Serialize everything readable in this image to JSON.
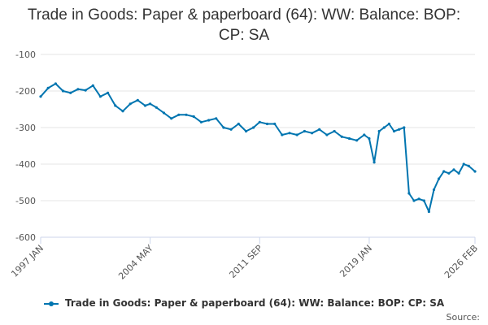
{
  "chart_data": {
    "type": "line",
    "title": "Trade in Goods: Paper & paperboard (64): WW: Balance: BOP: CP: SA",
    "xlabel": "",
    "ylabel": "",
    "x_tick_labels": [
      "1997 JAN",
      "2004 MAY",
      "2011 SEP",
      "2019 JAN",
      "2026 FEB"
    ],
    "y_ticks": [
      -100,
      -200,
      -300,
      -400,
      -500,
      -600
    ],
    "ylim": [
      -600,
      -100
    ],
    "xlim": [
      "1997-01",
      "2026-02"
    ],
    "grid": true,
    "legend_position": "bottom",
    "series": [
      {
        "name": "Trade in Goods: Paper & paperboard (64): WW: Balance: BOP: CP: SA",
        "color": "#0075b0",
        "x": [
          "1997-01",
          "1997-07",
          "1998-01",
          "1998-07",
          "1999-01",
          "1999-07",
          "2000-01",
          "2000-07",
          "2001-01",
          "2001-07",
          "2002-01",
          "2002-07",
          "2003-01",
          "2003-07",
          "2004-01",
          "2004-05",
          "2004-10",
          "2005-04",
          "2005-10",
          "2006-04",
          "2006-10",
          "2007-04",
          "2007-10",
          "2008-04",
          "2008-10",
          "2009-04",
          "2009-10",
          "2010-04",
          "2010-10",
          "2011-04",
          "2011-09",
          "2012-03",
          "2012-09",
          "2013-03",
          "2013-09",
          "2014-03",
          "2014-09",
          "2015-03",
          "2015-09",
          "2016-03",
          "2016-09",
          "2017-03",
          "2017-09",
          "2018-03",
          "2018-09",
          "2019-01",
          "2019-05",
          "2019-09",
          "2020-01",
          "2020-05",
          "2020-09",
          "2021-01",
          "2021-05",
          "2021-09",
          "2022-01",
          "2022-05",
          "2022-09",
          "2023-01",
          "2023-05",
          "2023-09",
          "2024-01",
          "2024-05",
          "2024-09",
          "2025-01",
          "2025-05",
          "2025-09",
          "2026-02"
        ],
        "values": [
          -215,
          -192,
          -180,
          -200,
          -205,
          -195,
          -198,
          -185,
          -215,
          -205,
          -240,
          -255,
          -235,
          -225,
          -240,
          -235,
          -245,
          -260,
          -275,
          -265,
          -265,
          -270,
          -285,
          -280,
          -275,
          -300,
          -305,
          -290,
          -310,
          -300,
          -285,
          -290,
          -290,
          -320,
          -315,
          -320,
          -310,
          -315,
          -305,
          -320,
          -310,
          -325,
          -330,
          -335,
          -320,
          -330,
          -395,
          -310,
          -300,
          -290,
          -310,
          -305,
          -300,
          -480,
          -500,
          -495,
          -500,
          -530,
          -470,
          -440,
          -420,
          -425,
          -415,
          -425,
          -400,
          -405,
          -420
        ]
      }
    ]
  },
  "source_label": "Source:"
}
